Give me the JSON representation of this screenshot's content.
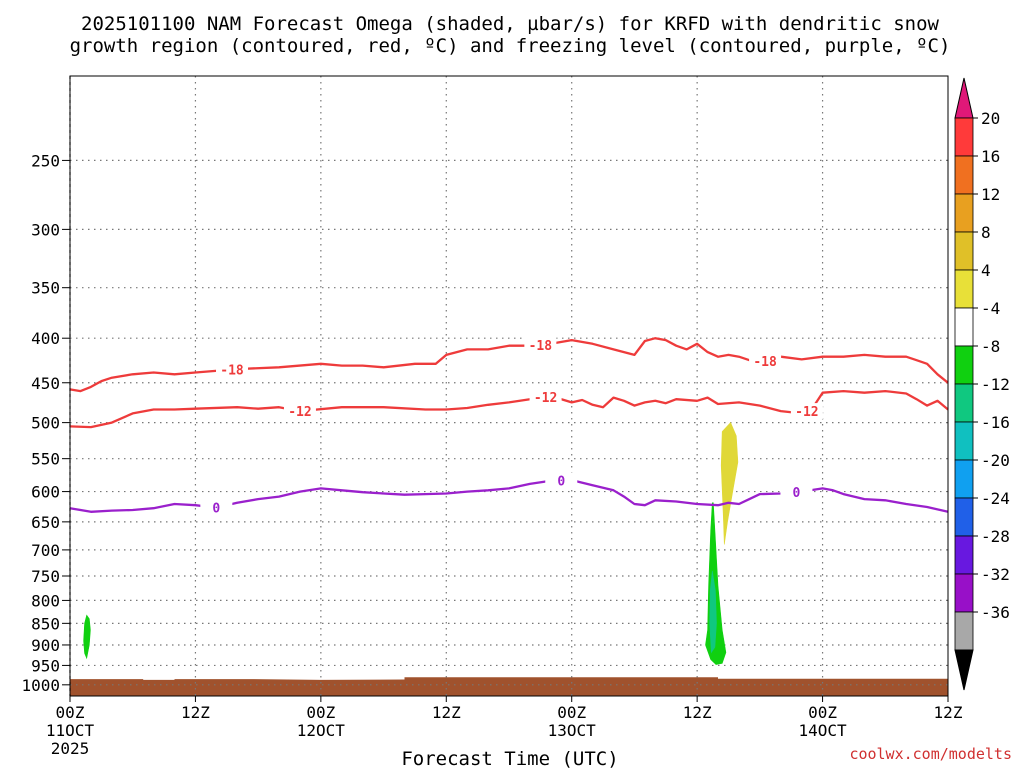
{
  "page": {
    "title_line1": "2025101100 NAM Forecast Omega (shaded, µbar/s) for KRFD with dendritic snow",
    "title_line2": "growth region (contoured, red, ºC) and freezing level (contoured, purple, ºC)",
    "xlabel": "Forecast Time (UTC)",
    "credit": "coolwx.com/modelts"
  },
  "chart_data": {
    "type": "heatmap",
    "title": "2025101100 NAM Forecast Omega (shaded, µbar/s) for KRFD with dendritic snow growth region (contoured, red, ºC) and freezing level (contoured, purple, ºC)",
    "xlabel": "Forecast Time (UTC)",
    "ylabel": "",
    "x_range_hours": [
      0,
      84
    ],
    "y_range_hPa": [
      200,
      1030
    ],
    "y_axis": "pressure (log, inverted)",
    "y_ticks": [
      250,
      300,
      350,
      400,
      450,
      500,
      550,
      600,
      650,
      700,
      750,
      800,
      850,
      900,
      950,
      1000
    ],
    "x_ticks": [
      {
        "hour": 0,
        "line1": "00Z",
        "line2": "11OCT",
        "line3": "2025"
      },
      {
        "hour": 12,
        "line1": "12Z",
        "line2": "",
        "line3": ""
      },
      {
        "hour": 24,
        "line1": "00Z",
        "line2": "12OCT",
        "line3": ""
      },
      {
        "hour": 36,
        "line1": "12Z",
        "line2": "",
        "line3": ""
      },
      {
        "hour": 48,
        "line1": "00Z",
        "line2": "13OCT",
        "line3": ""
      },
      {
        "hour": 60,
        "line1": "12Z",
        "line2": "",
        "line3": ""
      },
      {
        "hour": 72,
        "line1": "00Z",
        "line2": "14OCT",
        "line3": ""
      },
      {
        "hour": 84,
        "line1": "12Z",
        "line2": "",
        "line3": ""
      }
    ],
    "grid": true,
    "colorbar": {
      "labels": [
        "20",
        "16",
        "12",
        "8",
        "4",
        "-4",
        "-8",
        "-12",
        "-16",
        "-20",
        "-24",
        "-28",
        "-32",
        "-36"
      ],
      "colors": [
        "#ff3a3a",
        "#f07020",
        "#e8a020",
        "#e0c028",
        "#e8e038",
        "#ffffff",
        "#10d010",
        "#10c880",
        "#10c0c0",
        "#10a0f0",
        "#2060e8",
        "#6818e0",
        "#9810c8",
        "#a8a8a8"
      ],
      "max_arrow_color": "#e01878",
      "min_arrow_color": "#000000"
    },
    "contours": [
      {
        "label": "-18",
        "color": "#ee3b3b",
        "label_hours": [
          15.5,
          45,
          66.5
        ],
        "points": [
          [
            0,
            458
          ],
          [
            1,
            460
          ],
          [
            2,
            455
          ],
          [
            3,
            448
          ],
          [
            4,
            444
          ],
          [
            6,
            440
          ],
          [
            8,
            438
          ],
          [
            10,
            440
          ],
          [
            12,
            438
          ],
          [
            16,
            434
          ],
          [
            20,
            432
          ],
          [
            24,
            428
          ],
          [
            26,
            430
          ],
          [
            28,
            430
          ],
          [
            30,
            432
          ],
          [
            33,
            428
          ],
          [
            35,
            428
          ],
          [
            36,
            418
          ],
          [
            38,
            412
          ],
          [
            40,
            412
          ],
          [
            42,
            408
          ],
          [
            44,
            408
          ],
          [
            46,
            406
          ],
          [
            48,
            402
          ],
          [
            50,
            406
          ],
          [
            52,
            412
          ],
          [
            54,
            418
          ],
          [
            55,
            403
          ],
          [
            56,
            400
          ],
          [
            57,
            402
          ],
          [
            58,
            408
          ],
          [
            59,
            412
          ],
          [
            60,
            406
          ],
          [
            61,
            415
          ],
          [
            62,
            420
          ],
          [
            63,
            418
          ],
          [
            64,
            420
          ],
          [
            65,
            424
          ],
          [
            66,
            427
          ],
          [
            67,
            423
          ],
          [
            68,
            420
          ],
          [
            70,
            423
          ],
          [
            72,
            420
          ],
          [
            74,
            420
          ],
          [
            76,
            418
          ],
          [
            78,
            420
          ],
          [
            80,
            420
          ],
          [
            81,
            424
          ],
          [
            82,
            428
          ],
          [
            83,
            440
          ],
          [
            84,
            450
          ]
        ]
      },
      {
        "label": "-12",
        "color": "#ee3b3b",
        "label_hours": [
          22,
          45.5,
          70.5
        ],
        "points": [
          [
            0,
            505
          ],
          [
            2,
            506
          ],
          [
            4,
            500
          ],
          [
            6,
            488
          ],
          [
            8,
            483
          ],
          [
            10,
            483
          ],
          [
            12,
            482
          ],
          [
            16,
            480
          ],
          [
            18,
            482
          ],
          [
            20,
            480
          ],
          [
            22,
            485
          ],
          [
            26,
            480
          ],
          [
            30,
            480
          ],
          [
            34,
            483
          ],
          [
            36,
            483
          ],
          [
            38,
            481
          ],
          [
            40,
            477
          ],
          [
            42,
            474
          ],
          [
            44,
            470
          ],
          [
            46,
            466
          ],
          [
            48,
            474
          ],
          [
            49,
            471
          ],
          [
            50,
            477
          ],
          [
            51,
            480
          ],
          [
            52,
            468
          ],
          [
            53,
            472
          ],
          [
            54,
            478
          ],
          [
            55,
            474
          ],
          [
            56,
            472
          ],
          [
            57,
            475
          ],
          [
            58,
            470
          ],
          [
            60,
            472
          ],
          [
            61,
            468
          ],
          [
            62,
            476
          ],
          [
            64,
            474
          ],
          [
            66,
            478
          ],
          [
            68,
            485
          ],
          [
            70,
            488
          ],
          [
            71,
            482
          ],
          [
            72,
            462
          ],
          [
            74,
            460
          ],
          [
            76,
            462
          ],
          [
            78,
            460
          ],
          [
            80,
            463
          ],
          [
            81,
            470
          ],
          [
            82,
            478
          ],
          [
            83,
            472
          ],
          [
            84,
            483
          ]
        ]
      },
      {
        "label": "0",
        "color": "#9a20cc",
        "label_hours": [
          14,
          47,
          69.5
        ],
        "points": [
          [
            0,
            627
          ],
          [
            2,
            633
          ],
          [
            4,
            631
          ],
          [
            6,
            630
          ],
          [
            8,
            627
          ],
          [
            10,
            620
          ],
          [
            12,
            622
          ],
          [
            14,
            626
          ],
          [
            16,
            618
          ],
          [
            18,
            612
          ],
          [
            20,
            608
          ],
          [
            22,
            600
          ],
          [
            24,
            595
          ],
          [
            26,
            598
          ],
          [
            28,
            601
          ],
          [
            30,
            603
          ],
          [
            32,
            605
          ],
          [
            34,
            604
          ],
          [
            36,
            603
          ],
          [
            38,
            600
          ],
          [
            40,
            598
          ],
          [
            42,
            595
          ],
          [
            44,
            588
          ],
          [
            46,
            583
          ],
          [
            48,
            582
          ],
          [
            50,
            590
          ],
          [
            52,
            598
          ],
          [
            53,
            608
          ],
          [
            54,
            620
          ],
          [
            55,
            622
          ],
          [
            56,
            614
          ],
          [
            58,
            616
          ],
          [
            60,
            620
          ],
          [
            62,
            622
          ],
          [
            63,
            618
          ],
          [
            64,
            620
          ],
          [
            65,
            612
          ],
          [
            66,
            604
          ],
          [
            68,
            603
          ],
          [
            70,
            600
          ],
          [
            72,
            595
          ],
          [
            73,
            598
          ],
          [
            74,
            604
          ],
          [
            76,
            612
          ],
          [
            78,
            614
          ],
          [
            80,
            620
          ],
          [
            82,
            625
          ],
          [
            84,
            633
          ]
        ]
      }
    ],
    "shaded_regions": [
      {
        "name": "omega-negative-left",
        "value_range": [
          -8,
          -4
        ],
        "color": "#10d010",
        "polygon": [
          [
            1.6,
            832
          ],
          [
            1.85,
            840
          ],
          [
            1.95,
            865
          ],
          [
            1.85,
            900
          ],
          [
            1.6,
            932
          ],
          [
            1.4,
            920
          ],
          [
            1.3,
            890
          ],
          [
            1.4,
            850
          ]
        ]
      },
      {
        "name": "omega-negative-column",
        "value_range": [
          -8,
          -4
        ],
        "color": "#10d010",
        "polygon": [
          [
            61.55,
            618
          ],
          [
            61.7,
            665
          ],
          [
            62.0,
            770
          ],
          [
            62.4,
            865
          ],
          [
            62.75,
            918
          ],
          [
            62.4,
            945
          ],
          [
            61.8,
            948
          ],
          [
            61.3,
            935
          ],
          [
            60.8,
            900
          ],
          [
            61.0,
            865
          ],
          [
            61.1,
            770
          ],
          [
            61.3,
            665
          ],
          [
            61.45,
            618
          ]
        ]
      },
      {
        "name": "omega-strong-core",
        "value_range": [
          -12,
          -8
        ],
        "color": "#10c880",
        "polygon": [
          [
            61.45,
            740
          ],
          [
            61.75,
            780
          ],
          [
            61.85,
            850
          ],
          [
            61.7,
            905
          ],
          [
            61.35,
            918
          ],
          [
            61.2,
            850
          ],
          [
            61.25,
            780
          ]
        ]
      },
      {
        "name": "omega-positive-updraft",
        "value_range": [
          4,
          8
        ],
        "color": "#e0d838",
        "polygon": [
          [
            62.4,
            512
          ],
          [
            63.2,
            500
          ],
          [
            63.75,
            518
          ],
          [
            63.9,
            555
          ],
          [
            63.4,
            600
          ],
          [
            62.9,
            650
          ],
          [
            62.6,
            690
          ],
          [
            62.5,
            640
          ],
          [
            62.3,
            560
          ]
        ]
      }
    ],
    "terrain": {
      "color": "#a0522d",
      "surface": [
        [
          0,
          985
        ],
        [
          7,
          985
        ],
        [
          7,
          987
        ],
        [
          10,
          987
        ],
        [
          10,
          985
        ],
        [
          17,
          985
        ],
        [
          24,
          987
        ],
        [
          32,
          986
        ],
        [
          32,
          980
        ],
        [
          48,
          980
        ],
        [
          62,
          980
        ],
        [
          62,
          984
        ],
        [
          84,
          984
        ]
      ]
    }
  }
}
